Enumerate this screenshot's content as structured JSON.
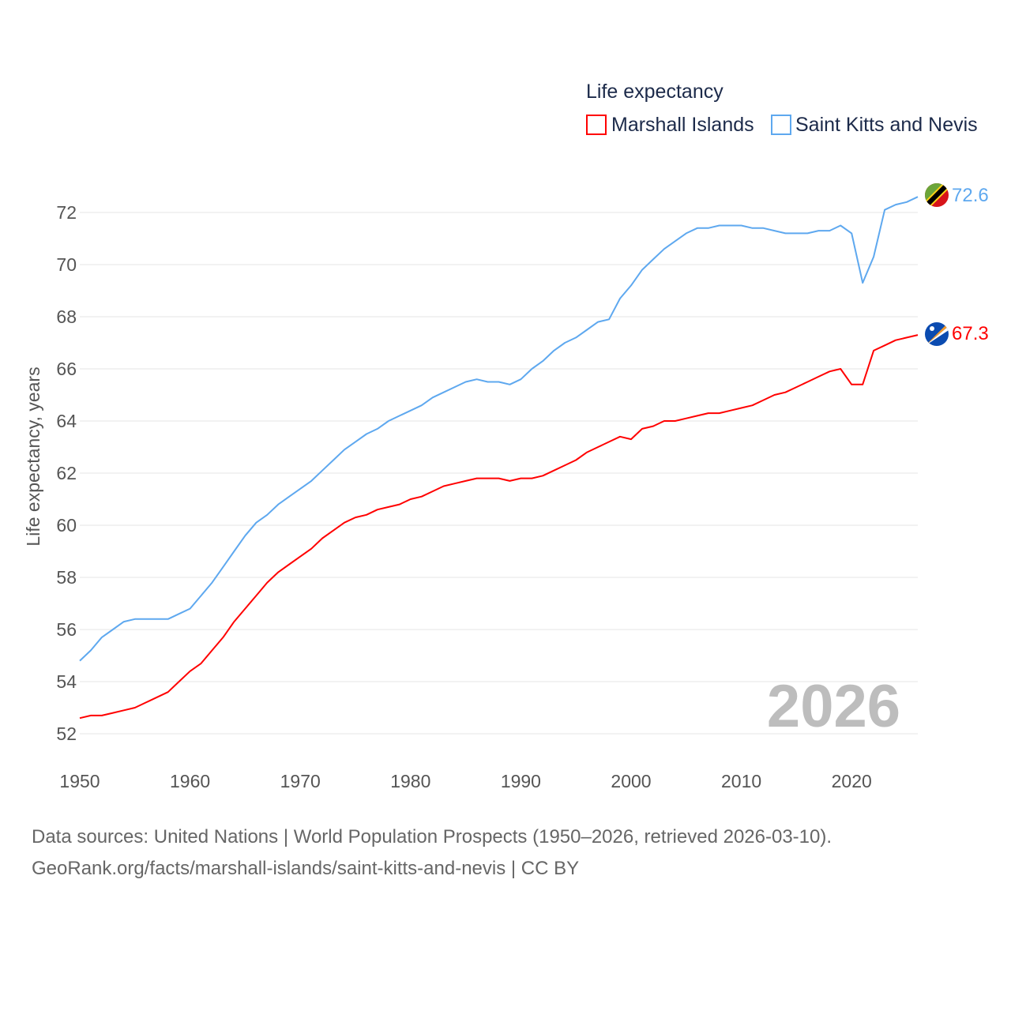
{
  "chart_data": {
    "type": "line",
    "title": "",
    "legend_title": "Life expectancy",
    "legend_position": "top-right",
    "ylabel": "Life expectancy, years",
    "xlabel": "",
    "xlim": [
      1950,
      2026
    ],
    "ylim": [
      51,
      73
    ],
    "grid": true,
    "x_ticks": [
      1950,
      1960,
      1970,
      1980,
      1990,
      2000,
      2010,
      2020
    ],
    "y_ticks": [
      52,
      54,
      56,
      58,
      60,
      62,
      64,
      66,
      68,
      70,
      72
    ],
    "year_watermark": "2026",
    "x_start": 1950,
    "series": [
      {
        "name": "Marshall Islands",
        "color": "#ff0000",
        "end_label": "67.3",
        "flag": "marshall-islands-flag",
        "values": [
          52.6,
          52.7,
          52.7,
          52.8,
          52.9,
          53.0,
          53.2,
          53.4,
          53.6,
          54.0,
          54.4,
          54.7,
          55.2,
          55.7,
          56.3,
          56.8,
          57.3,
          57.8,
          58.2,
          58.5,
          58.8,
          59.1,
          59.5,
          59.8,
          60.1,
          60.3,
          60.4,
          60.6,
          60.7,
          60.8,
          61.0,
          61.1,
          61.3,
          61.5,
          61.6,
          61.7,
          61.8,
          61.8,
          61.8,
          61.7,
          61.8,
          61.8,
          61.9,
          62.1,
          62.3,
          62.5,
          62.8,
          63.0,
          63.2,
          63.4,
          63.3,
          63.7,
          63.8,
          64.0,
          64.0,
          64.1,
          64.2,
          64.3,
          64.3,
          64.4,
          64.5,
          64.6,
          64.8,
          65.0,
          65.1,
          65.3,
          65.5,
          65.7,
          65.9,
          66.0,
          65.4,
          65.4,
          66.7,
          66.9,
          67.1,
          67.2,
          67.3
        ]
      },
      {
        "name": "Saint Kitts and Nevis",
        "color": "#5ea8ef",
        "end_label": "72.6",
        "flag": "saint-kitts-and-nevis-flag",
        "values": [
          54.8,
          55.2,
          55.7,
          56.0,
          56.3,
          56.4,
          56.4,
          56.4,
          56.4,
          56.6,
          56.8,
          57.3,
          57.8,
          58.4,
          59.0,
          59.6,
          60.1,
          60.4,
          60.8,
          61.1,
          61.4,
          61.7,
          62.1,
          62.5,
          62.9,
          63.2,
          63.5,
          63.7,
          64.0,
          64.2,
          64.4,
          64.6,
          64.9,
          65.1,
          65.3,
          65.5,
          65.6,
          65.5,
          65.5,
          65.4,
          65.6,
          66.0,
          66.3,
          66.7,
          67.0,
          67.2,
          67.5,
          67.8,
          67.9,
          68.7,
          69.2,
          69.8,
          70.2,
          70.6,
          70.9,
          71.2,
          71.4,
          71.4,
          71.5,
          71.5,
          71.5,
          71.4,
          71.4,
          71.3,
          71.2,
          71.2,
          71.2,
          71.3,
          71.3,
          71.5,
          71.2,
          69.3,
          70.3,
          72.1,
          72.3,
          72.4,
          72.6
        ]
      }
    ]
  },
  "footer": {
    "line1": "Data sources: United Nations | World Population Prospects (1950–2026, retrieved 2026-03-10).",
    "line2": "GeoRank.org/facts/marshall-islands/saint-kitts-and-nevis | CC BY"
  }
}
